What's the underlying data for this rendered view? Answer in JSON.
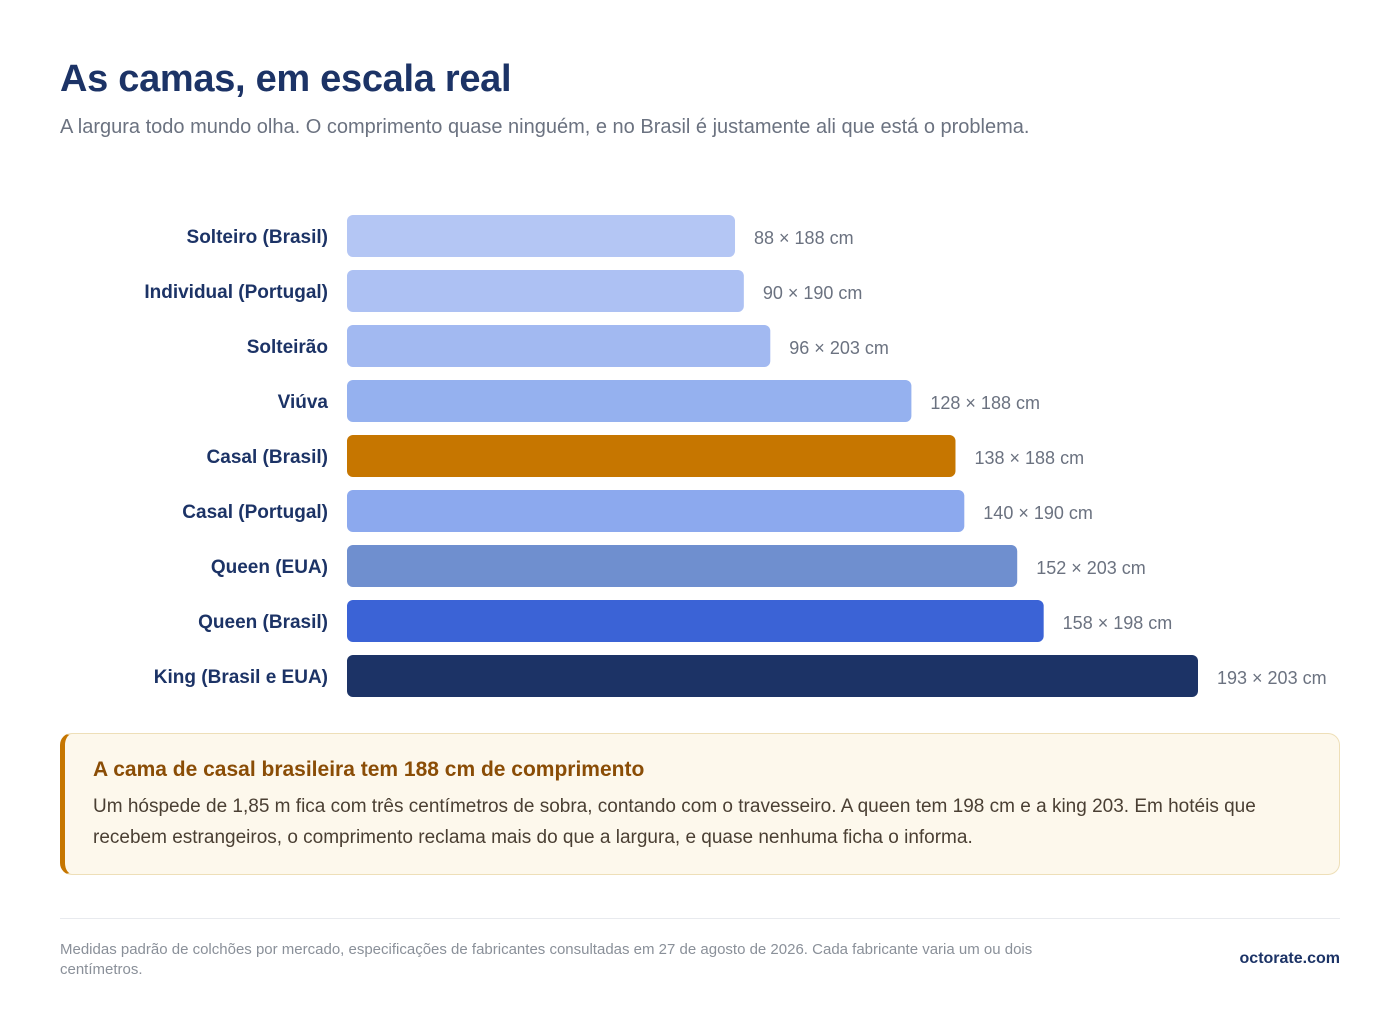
{
  "header": {
    "title": "As camas, em escala real",
    "subtitle": "A largura todo mundo olha. O comprimento quase ninguém, e no Brasil é justamente ali que está o problema."
  },
  "chart_data": {
    "type": "bar",
    "orientation": "horizontal",
    "xlabel": "",
    "ylabel": "",
    "xlim": [
      0,
      193
    ],
    "grid": false,
    "legend": "none",
    "categories": [
      "Solteiro (Brasil)",
      "Individual (Portugal)",
      "Solteirão",
      "Viúva",
      "Casal (Brasil)",
      "Casal (Portugal)",
      "Queen (EUA)",
      "Queen (Brasil)",
      "King (Brasil e EUA)"
    ],
    "values": [
      88,
      90,
      96,
      128,
      138,
      140,
      152,
      158,
      193
    ],
    "lengths": [
      188,
      190,
      203,
      188,
      188,
      190,
      203,
      198,
      203
    ],
    "value_labels": [
      "88 × 188 cm",
      "90 × 190 cm",
      "96 × 203 cm",
      "128 × 188 cm",
      "138 × 188 cm",
      "140 × 190 cm",
      "152 × 203 cm",
      "158 × 198 cm",
      "193 × 203 cm"
    ],
    "colors": [
      "#b4c6f4",
      "#adc1f3",
      "#a2b9f1",
      "#95b1ef",
      "#c67600",
      "#8ca9ee",
      "#6f8fcf",
      "#3b63d6",
      "#1c3366"
    ],
    "highlight": "Casal (Brasil)"
  },
  "callout": {
    "title": "A cama de casal brasileira tem 188 cm de comprimento",
    "body": "Um hóspede de 1,85 m fica com três centímetros de sobra, contando com o travesseiro. A queen tem 198 cm e a king 203. Em hotéis que recebem estrangeiros, o comprimento reclama mais do que a largura, e quase nenhuma ficha o informa."
  },
  "footer": {
    "note": "Medidas padrão de colchões por mercado, especificações de fabricantes consultadas em 27 de agosto de 2026. Cada fabricante varia um ou dois centímetros.",
    "brand": "octorate.com"
  }
}
